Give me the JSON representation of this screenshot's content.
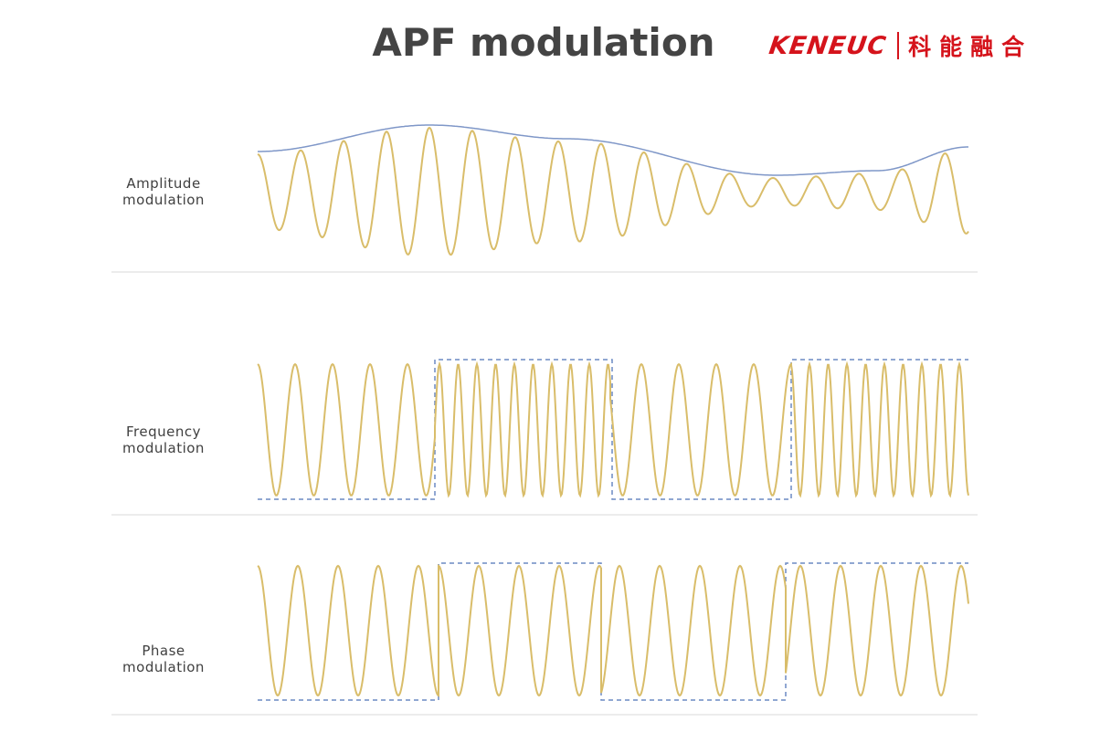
{
  "title": "APF modulation",
  "logo": {
    "brand": "KENEUC",
    "chinese": "科能融合",
    "color": "#d5131b"
  },
  "rows": [
    {
      "label_line1": "Amplitude",
      "label_line2": "modulation"
    },
    {
      "label_line1": "Frequency",
      "label_line2": "modulation"
    },
    {
      "label_line1": "Phase",
      "label_line2": "modulation"
    }
  ],
  "colors": {
    "carrier": "#d9bd6a",
    "envelope": "#7f97c8",
    "digital": "#6b8ac4",
    "divider": "#d9d9d9",
    "text": "#404040"
  }
}
